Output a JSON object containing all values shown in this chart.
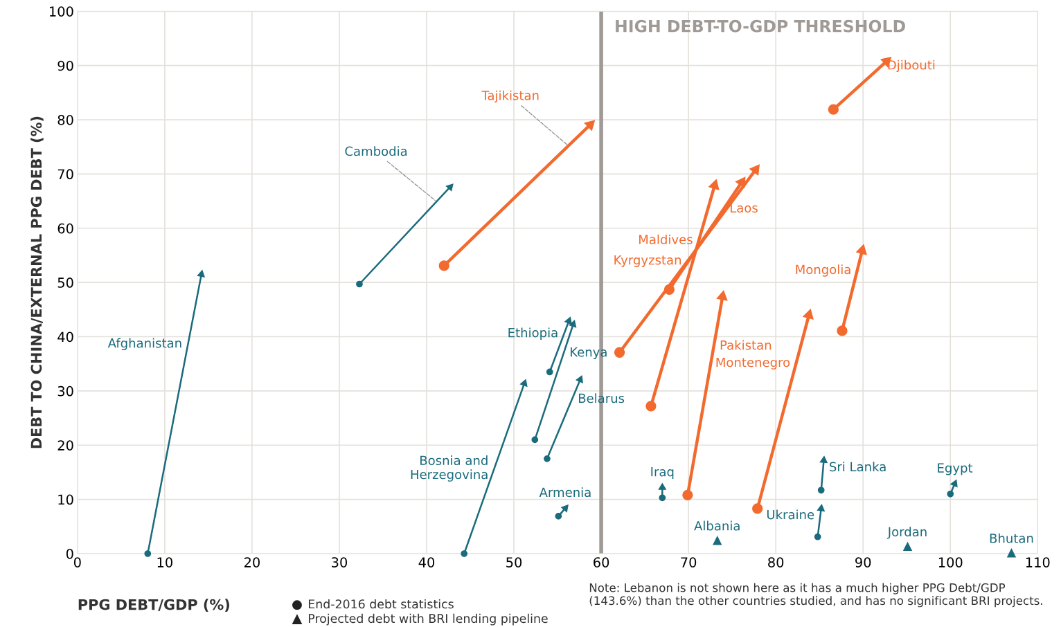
{
  "chart_data": {
    "type": "line",
    "xlabel": "PPG DEBT/GDP (%)",
    "ylabel": "DEBT TO CHINA/EXTERNAL PPG DEBT (%)",
    "xlim": [
      0,
      110
    ],
    "xticks": [
      0,
      10,
      20,
      30,
      40,
      50,
      60,
      70,
      80,
      90,
      100,
      110
    ],
    "ylim": [
      0,
      100
    ],
    "yticks": [
      0,
      10,
      20,
      30,
      40,
      50,
      60,
      70,
      80,
      90,
      100
    ],
    "grid": true,
    "marker": "circle",
    "legend": false,
    "ref_lines": [
      {
        "axis": "x",
        "value": 60,
        "label": "HIGH DEBT-TO-GDP THRESHOLD",
        "color": "#a09a96"
      }
    ],
    "series": [
      {
        "name": "Afghanistan",
        "color": "#1a6b7c",
        "x": [
          8.05,
          14.2
        ],
        "values": [
          0,
          51.5
        ]
      },
      {
        "name": "Cambodia",
        "color": "#1a6b7c",
        "x": [
          32.3,
          42.7
        ],
        "values": [
          49.7,
          67.6
        ]
      },
      {
        "name": "Tajikistan",
        "color": "#f26a2e",
        "x": [
          42.0,
          58.75
        ],
        "values": [
          53.1,
          79.1
        ]
      },
      {
        "name": "Ethiopia",
        "color": "#1a6b7c",
        "x": [
          54.1,
          56.3
        ],
        "values": [
          33.5,
          42.9
        ]
      },
      {
        "name": "Kenya",
        "color": "#1a6b7c",
        "x": [
          52.4,
          56.8
        ],
        "values": [
          21.0,
          42.3
        ]
      },
      {
        "name": "Belarus",
        "color": "#1a6b7c",
        "x": [
          53.8,
          57.6
        ],
        "values": [
          17.5,
          32.1
        ]
      },
      {
        "name": "Bosnia and\nHerzegovina",
        "color": "#1a6b7c",
        "x": [
          44.3,
          51.2
        ],
        "values": [
          0,
          31.4
        ]
      },
      {
        "name": "Armenia",
        "color": "#1a6b7c",
        "x": [
          55.1,
          55.9
        ],
        "values": [
          6.9,
          8.4
        ]
      },
      {
        "name": "Iraq",
        "color": "#1a6b7c",
        "x": [
          67.0,
          67.0
        ],
        "values": [
          10.3,
          12.2
        ]
      },
      {
        "name": "Albania",
        "color": "#1a6b7c",
        "type": "scatter",
        "marker": "triangle",
        "x": [
          73.3
        ],
        "values": [
          2.4
        ]
      },
      {
        "name": "Maldives",
        "color": "#f26a2e",
        "x": [
          65.7,
          73.0
        ],
        "values": [
          27.2,
          67.9
        ]
      },
      {
        "name": "Laos",
        "color": "#f26a2e",
        "x": [
          67.8,
          76.1
        ],
        "values": [
          48.7,
          68.5
        ]
      },
      {
        "name": "Kyrgyzstan",
        "color": "#f26a2e",
        "x": [
          62.1,
          77.7
        ],
        "values": [
          37.1,
          70.8
        ]
      },
      {
        "name": "Pakistan",
        "color": "#f26a2e",
        "x": [
          69.9,
          73.9
        ],
        "values": [
          10.8,
          47.4
        ]
      },
      {
        "name": "Montenegro",
        "color": "#f26a2e",
        "x": [
          77.9,
          83.8
        ],
        "values": [
          8.3,
          44.0
        ]
      },
      {
        "name": "Mongolia",
        "color": "#f26a2e",
        "x": [
          87.6,
          89.9
        ],
        "values": [
          41.1,
          55.9
        ]
      },
      {
        "name": "Djibouti",
        "color": "#f26a2e",
        "x": [
          86.6,
          92.7
        ],
        "values": [
          81.9,
          90.8
        ]
      },
      {
        "name": "Sri Lanka",
        "color": "#1a6b7c",
        "x": [
          85.2,
          85.5
        ],
        "values": [
          11.7,
          17.2
        ]
      },
      {
        "name": "Ukraine",
        "color": "#1a6b7c",
        "x": [
          84.8,
          85.2
        ],
        "values": [
          3.1,
          8.3
        ]
      },
      {
        "name": "Jordan",
        "color": "#1a6b7c",
        "type": "scatter",
        "marker": "triangle",
        "x": [
          95.1
        ],
        "values": [
          1.3
        ]
      },
      {
        "name": "Egypt",
        "color": "#1a6b7c",
        "x": [
          100.0,
          100.5
        ],
        "values": [
          11.0,
          12.9
        ]
      },
      {
        "name": "Bhutan",
        "color": "#1a6b7c",
        "type": "scatter",
        "marker": "triangle",
        "x": [
          107.0
        ],
        "values": [
          0.1
        ]
      }
    ],
    "annotations": [
      "End-2016 debt statistics",
      "Projected debt with BRI lending pipeline",
      "Note: Lebanon is not shown here as it has a much higher PPG Debt/GDP (143.6%) than the other countries studied, and has no significant BRI projects."
    ]
  }
}
